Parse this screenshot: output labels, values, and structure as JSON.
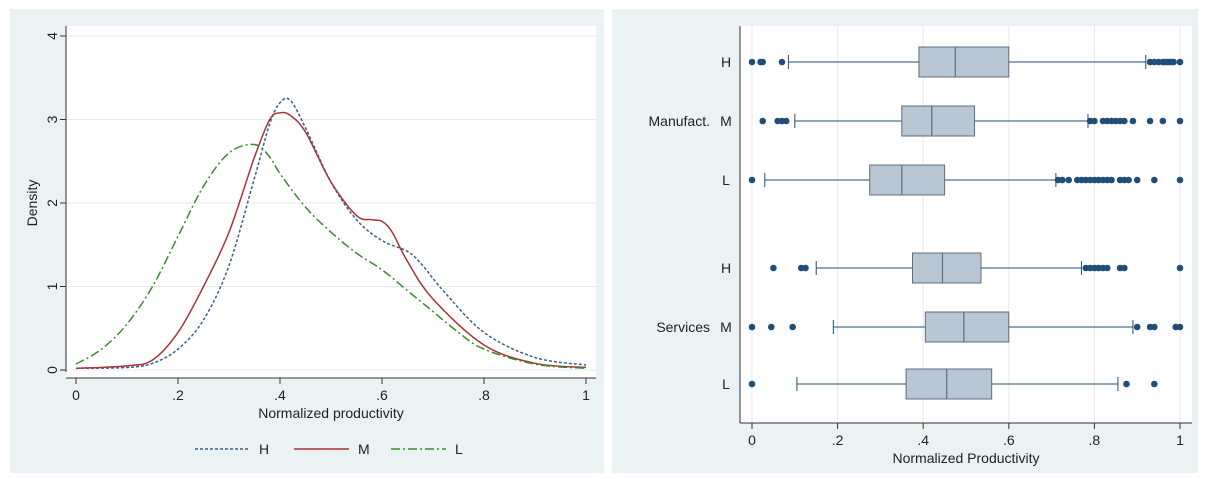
{
  "chart_data": [
    {
      "type": "line",
      "title": "",
      "xlabel": "Normalized productivity",
      "ylabel": "Density",
      "xlim": [
        0,
        1
      ],
      "ylim": [
        0,
        4
      ],
      "x_ticks": [
        "0",
        ".2",
        ".4",
        ".6",
        ".8",
        "1"
      ],
      "x_tick_values": [
        0,
        0.2,
        0.4,
        0.6,
        0.8,
        1
      ],
      "y_ticks": [
        "0",
        "1",
        "2",
        "3",
        "4"
      ],
      "y_tick_values": [
        0,
        1,
        2,
        3,
        4
      ],
      "grid": "horizontal",
      "legend_position": "bottom",
      "legend": [
        "H",
        "M",
        "L"
      ],
      "series": [
        {
          "name": "H",
          "color": "#3a5f8f",
          "dash": "dotted",
          "x": [
            0,
            0.1,
            0.15,
            0.2,
            0.25,
            0.3,
            0.35,
            0.38,
            0.4,
            0.42,
            0.45,
            0.5,
            0.55,
            0.6,
            0.65,
            0.68,
            0.72,
            0.8,
            0.9,
            1.0
          ],
          "y": [
            0.02,
            0.03,
            0.08,
            0.25,
            0.6,
            1.25,
            2.3,
            2.95,
            3.2,
            3.23,
            2.9,
            2.25,
            1.8,
            1.55,
            1.42,
            1.25,
            0.95,
            0.45,
            0.15,
            0.06
          ]
        },
        {
          "name": "M",
          "color": "#a8333c",
          "dash": "solid",
          "x": [
            0,
            0.1,
            0.15,
            0.2,
            0.25,
            0.3,
            0.35,
            0.38,
            0.4,
            0.42,
            0.45,
            0.5,
            0.55,
            0.58,
            0.6,
            0.62,
            0.65,
            0.7,
            0.8,
            0.9,
            1.0
          ],
          "y": [
            0.02,
            0.05,
            0.12,
            0.45,
            1.0,
            1.65,
            2.55,
            3.0,
            3.08,
            3.05,
            2.85,
            2.25,
            1.85,
            1.8,
            1.78,
            1.65,
            1.3,
            0.85,
            0.3,
            0.08,
            0.03
          ]
        },
        {
          "name": "L",
          "color": "#3a8a2e",
          "dash": "dashdot",
          "x": [
            0,
            0.05,
            0.1,
            0.15,
            0.2,
            0.25,
            0.3,
            0.35,
            0.38,
            0.4,
            0.45,
            0.5,
            0.55,
            0.6,
            0.65,
            0.7,
            0.75,
            0.8,
            0.9,
            1.0
          ],
          "y": [
            0.07,
            0.25,
            0.55,
            1.0,
            1.6,
            2.2,
            2.6,
            2.7,
            2.55,
            2.35,
            1.95,
            1.65,
            1.4,
            1.2,
            0.95,
            0.7,
            0.45,
            0.25,
            0.07,
            0.02
          ]
        }
      ]
    },
    {
      "type": "box",
      "title": "",
      "xlabel": "Normalized Productivity",
      "xlim": [
        0,
        1
      ],
      "x_ticks": [
        "0",
        ".2",
        ".4",
        ".6",
        ".8",
        "1"
      ],
      "x_tick_values": [
        0,
        0.2,
        0.4,
        0.6,
        0.8,
        1
      ],
      "grid": "vertical",
      "box_color": "#b9c6d3",
      "outlier_color": "#1f4e79",
      "groups": [
        {
          "name": "Manufact.",
          "boxes": [
            {
              "label": "H",
              "whisker_low": 0.085,
              "q1": 0.39,
              "median": 0.475,
              "q3": 0.6,
              "whisker_high": 0.92,
              "outliers": [
                0,
                0.02,
                0.025,
                0.07,
                0.93,
                0.94,
                0.95,
                0.96,
                0.965,
                0.97,
                0.975,
                0.98,
                0.985,
                1.0
              ]
            },
            {
              "label": "M",
              "whisker_low": 0.1,
              "q1": 0.35,
              "median": 0.42,
              "q3": 0.52,
              "whisker_high": 0.785,
              "outliers": [
                0.025,
                0.06,
                0.07,
                0.08,
                0.79,
                0.8,
                0.82,
                0.83,
                0.84,
                0.85,
                0.86,
                0.87,
                0.89,
                0.93,
                0.96,
                1.0
              ]
            },
            {
              "label": "L",
              "whisker_low": 0.03,
              "q1": 0.275,
              "median": 0.35,
              "q3": 0.45,
              "whisker_high": 0.71,
              "outliers": [
                0,
                0.715,
                0.725,
                0.74,
                0.76,
                0.77,
                0.78,
                0.79,
                0.8,
                0.81,
                0.82,
                0.83,
                0.84,
                0.86,
                0.87,
                0.88,
                0.9,
                0.94,
                1.0
              ]
            }
          ]
        },
        {
          "name": "Services",
          "boxes": [
            {
              "label": "H",
              "whisker_low": 0.15,
              "q1": 0.375,
              "median": 0.445,
              "q3": 0.535,
              "whisker_high": 0.77,
              "outliers": [
                0.05,
                0.115,
                0.125,
                0.78,
                0.79,
                0.8,
                0.81,
                0.82,
                0.83,
                0.86,
                0.87,
                1.0
              ]
            },
            {
              "label": "M",
              "whisker_low": 0.19,
              "q1": 0.405,
              "median": 0.495,
              "q3": 0.6,
              "whisker_high": 0.89,
              "outliers": [
                0,
                0.045,
                0.095,
                0.9,
                0.93,
                0.94,
                0.99,
                1.0
              ]
            },
            {
              "label": "L",
              "whisker_low": 0.105,
              "q1": 0.36,
              "median": 0.455,
              "q3": 0.56,
              "whisker_high": 0.855,
              "outliers": [
                0,
                0.875,
                0.94
              ]
            }
          ]
        }
      ]
    }
  ]
}
